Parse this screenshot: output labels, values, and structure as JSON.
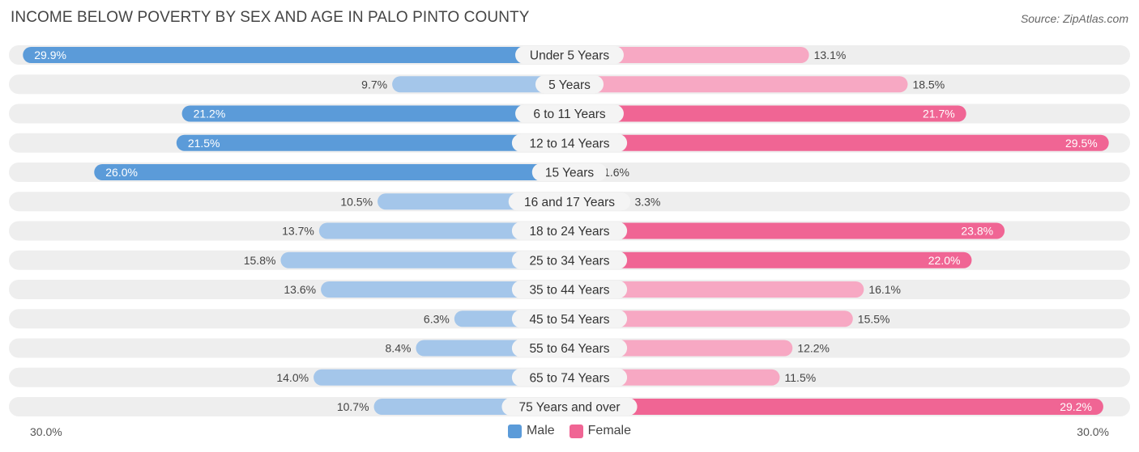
{
  "header": {
    "title": "INCOME BELOW POVERTY BY SEX AND AGE IN PALO PINTO COUNTY",
    "source": "Source: ZipAtlas.com"
  },
  "axis": {
    "left_label": "30.0%",
    "right_label": "30.0%"
  },
  "legend": {
    "male_label": "Male",
    "female_label": "Female"
  },
  "colors": {
    "male_strong": "#5b9bd9",
    "male_light": "#a4c6ea",
    "female_strong": "#f06594",
    "female_light": "#f7a8c3",
    "track": "#eeeeee",
    "label_bg": "#f4f4f4"
  },
  "chart_data": {
    "type": "bar",
    "orientation": "diverging-horizontal",
    "max": 30.0,
    "categories": [
      "Under 5 Years",
      "5 Years",
      "6 to 11 Years",
      "12 to 14 Years",
      "15 Years",
      "16 and 17 Years",
      "18 to 24 Years",
      "25 to 34 Years",
      "35 to 44 Years",
      "45 to 54 Years",
      "55 to 64 Years",
      "65 to 74 Years",
      "75 Years and over"
    ],
    "series": [
      {
        "name": "Male",
        "values": [
          29.9,
          9.7,
          21.2,
          21.5,
          26.0,
          10.5,
          13.7,
          15.8,
          13.6,
          6.3,
          8.4,
          14.0,
          10.7
        ]
      },
      {
        "name": "Female",
        "values": [
          13.1,
          18.5,
          21.7,
          29.5,
          1.6,
          3.3,
          23.8,
          22.0,
          16.1,
          15.5,
          12.2,
          11.5,
          29.2
        ]
      }
    ],
    "labels": {
      "male": [
        "29.9%",
        "9.7%",
        "21.2%",
        "21.5%",
        "26.0%",
        "10.5%",
        "13.7%",
        "15.8%",
        "13.6%",
        "6.3%",
        "8.4%",
        "14.0%",
        "10.7%"
      ],
      "female": [
        "13.1%",
        "18.5%",
        "21.7%",
        "29.5%",
        "1.6%",
        "3.3%",
        "23.8%",
        "22.0%",
        "16.1%",
        "15.5%",
        "12.2%",
        "11.5%",
        "29.2%"
      ]
    }
  }
}
